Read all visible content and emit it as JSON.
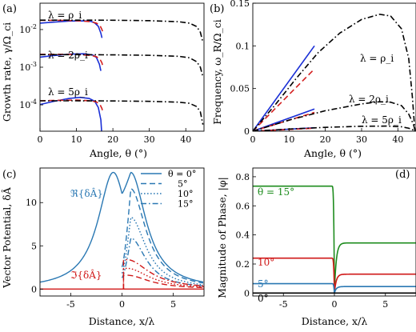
{
  "colors": {
    "blue": "#1a2fd6",
    "red": "#d42020",
    "black": "#000000",
    "steel": "#2a78b3",
    "crimson": "#d01818",
    "green": "#1e8c1e"
  },
  "chart_data": [
    {
      "panel": "(a)",
      "type": "line",
      "xlabel": "Angle, θ (°)",
      "ylabel": "Growth rate, γ/Ω_ci",
      "xlim": [
        0,
        45
      ],
      "ylim_log10": [
        -4.7,
        -1.3
      ],
      "yscale": "log",
      "xticks": [
        "0",
        "10",
        "20",
        "30",
        "40"
      ],
      "yticks": [
        "10^-2",
        "10^-3",
        "10^-4"
      ],
      "annotations": [
        "λ = ρ_i",
        "λ = 2ρ_i",
        "λ = 5ρ_i"
      ],
      "series": [
        {
          "color": "blue",
          "dash": "solid",
          "points": [
            [
              0,
              0.0148
            ],
            [
              4,
              0.0158
            ],
            [
              8,
              0.0168
            ],
            [
              12,
              0.017
            ],
            [
              14,
              0.0165
            ],
            [
              15,
              0.015
            ],
            [
              16,
              0.0122
            ],
            [
              16.7,
              0.008
            ],
            [
              17,
              0.006
            ]
          ]
        },
        {
          "color": "red",
          "dash": "dashed",
          "points": [
            [
              0,
              0.0175
            ],
            [
              5,
              0.0176
            ],
            [
              10,
              0.0172
            ],
            [
              14,
              0.0162
            ],
            [
              15.5,
              0.0148
            ],
            [
              16.5,
              0.0125
            ],
            [
              17,
              0.01
            ],
            [
              17.3,
              0.008
            ]
          ]
        },
        {
          "color": "black",
          "dash": "dashdot",
          "points": [
            [
              0,
              0.0178
            ],
            [
              10,
              0.0178
            ],
            [
              20,
              0.0177
            ],
            [
              30,
              0.0172
            ],
            [
              38,
              0.0162
            ],
            [
              41,
              0.0148
            ],
            [
              43,
              0.012
            ],
            [
              44,
              0.0085
            ],
            [
              44.6,
              0.005
            ]
          ]
        },
        {
          "color": "blue",
          "dash": "solid",
          "points": [
            [
              0,
              0.00185
            ],
            [
              4,
              0.00205
            ],
            [
              8,
              0.00222
            ],
            [
              12,
              0.00228
            ],
            [
              14.5,
              0.0021
            ],
            [
              15.5,
              0.0018
            ],
            [
              16.3,
              0.0012
            ],
            [
              16.7,
              0.0008
            ]
          ]
        },
        {
          "color": "red",
          "dash": "dashed",
          "points": [
            [
              0,
              0.0022
            ],
            [
              6,
              0.0022
            ],
            [
              10,
              0.00218
            ],
            [
              14,
              0.00205
            ],
            [
              15.5,
              0.0019
            ],
            [
              16.5,
              0.0016
            ],
            [
              17,
              0.0013
            ],
            [
              17.3,
              0.001
            ]
          ]
        },
        {
          "color": "black",
          "dash": "dashdot",
          "points": [
            [
              0,
              0.00215
            ],
            [
              10,
              0.00215
            ],
            [
              20,
              0.00213
            ],
            [
              30,
              0.00207
            ],
            [
              38,
              0.00195
            ],
            [
              41,
              0.00178
            ],
            [
              43,
              0.0014
            ],
            [
              44,
              0.001
            ],
            [
              44.6,
              0.0006
            ]
          ]
        },
        {
          "color": "blue",
          "dash": "solid",
          "points": [
            [
              0,
              0.000102
            ],
            [
              4,
              0.000125
            ],
            [
              8,
              0.000148
            ],
            [
              11,
              0.000158
            ],
            [
              13.5,
              0.000148
            ],
            [
              15,
              0.000125
            ],
            [
              16,
              8.5e-05
            ],
            [
              16.7,
              4e-05
            ],
            [
              16.9,
              2e-05
            ]
          ]
        },
        {
          "color": "red",
          "dash": "dashed",
          "points": [
            [
              0,
              0.000128
            ],
            [
              5,
              0.000132
            ],
            [
              10,
              0.000134
            ],
            [
              14,
              0.000128
            ],
            [
              15.5,
              0.00012
            ],
            [
              16.5,
              0.0001
            ],
            [
              17,
              8e-05
            ],
            [
              17.3,
              6e-05
            ]
          ]
        },
        {
          "color": "black",
          "dash": "dashdot",
          "points": [
            [
              0,
              0.000128
            ],
            [
              10,
              0.000128
            ],
            [
              20,
              0.000127
            ],
            [
              30,
              0.000124
            ],
            [
              38,
              0.000118
            ],
            [
              41,
              0.00011
            ],
            [
              43,
              9e-05
            ],
            [
              44,
              6.5e-05
            ],
            [
              44.7,
              3e-05
            ]
          ]
        }
      ]
    },
    {
      "panel": "(b)",
      "type": "line",
      "xlabel": "Angle, θ (°)",
      "ylabel": "Frequency, ω_R/Ω_ci",
      "xlim": [
        0,
        45
      ],
      "ylim": [
        0,
        0.15
      ],
      "xticks": [
        "0",
        "10",
        "20",
        "30",
        "40"
      ],
      "yticks": [
        "0",
        "0.05",
        "0.1",
        "0.15"
      ],
      "annotations": [
        "λ = ρ_i",
        "λ = 2ρ_i",
        "λ = 5ρ_i"
      ],
      "series": [
        {
          "color": "blue",
          "dash": "solid",
          "points": [
            [
              0,
              0
            ],
            [
              17,
              0.1
            ]
          ]
        },
        {
          "color": "red",
          "dash": "dashed",
          "points": [
            [
              0,
              0
            ],
            [
              17,
              0.073
            ]
          ]
        },
        {
          "color": "black",
          "dash": "dashdot",
          "points": [
            [
              0,
              0
            ],
            [
              6,
              0.03
            ],
            [
              12,
              0.062
            ],
            [
              18,
              0.092
            ],
            [
              24,
              0.115
            ],
            [
              30,
              0.131
            ],
            [
              35,
              0.137
            ],
            [
              38,
              0.135
            ],
            [
              41,
              0.12
            ],
            [
              43,
              0.085
            ],
            [
              44,
              0.04
            ],
            [
              44.7,
              0
            ]
          ]
        },
        {
          "color": "blue",
          "dash": "solid",
          "points": [
            [
              0,
              0
            ],
            [
              17,
              0.026
            ]
          ]
        },
        {
          "color": "red",
          "dash": "dashed",
          "points": [
            [
              0,
              0
            ],
            [
              17,
              0.022
            ]
          ]
        },
        {
          "color": "black",
          "dash": "dashdot",
          "points": [
            [
              0,
              0
            ],
            [
              10,
              0.013
            ],
            [
              20,
              0.024
            ],
            [
              30,
              0.032
            ],
            [
              35,
              0.0345
            ],
            [
              38,
              0.034
            ],
            [
              41,
              0.03
            ],
            [
              43,
              0.02
            ],
            [
              44.3,
              0.008
            ],
            [
              44.8,
              0
            ]
          ]
        },
        {
          "color": "blue",
          "dash": "solid",
          "points": [
            [
              0,
              0
            ],
            [
              17,
              0.004
            ]
          ]
        },
        {
          "color": "red",
          "dash": "dashed",
          "points": [
            [
              0,
              0
            ],
            [
              17,
              0.0035
            ]
          ]
        },
        {
          "color": "black",
          "dash": "dashdot",
          "points": [
            [
              0,
              0
            ],
            [
              10,
              0.0025
            ],
            [
              20,
              0.0045
            ],
            [
              30,
              0.0058
            ],
            [
              37,
              0.006
            ],
            [
              41,
              0.0052
            ],
            [
              43,
              0.0035
            ],
            [
              44.5,
              0.001
            ],
            [
              44.8,
              0
            ]
          ]
        }
      ]
    },
    {
      "panel": "(c)",
      "type": "line",
      "xlabel": "Distance, x/λ",
      "ylabel": "Vector Potential, δÂ",
      "xlim": [
        -8,
        8
      ],
      "ylim": [
        -0.8,
        14
      ],
      "xticks": [
        "-5",
        "0",
        "5"
      ],
      "yticks": [
        "0",
        "5",
        "10"
      ],
      "annotations": [
        "ℜ{δÂ}",
        "ℑ{δÂ}"
      ],
      "legend": {
        "position": "top-right",
        "entries": [
          {
            "label": "θ = 0°",
            "dash": "solid"
          },
          {
            "label": "5°",
            "dash": "dashed"
          },
          {
            "label": "10°",
            "dash": "dotted"
          },
          {
            "label": "15°",
            "dash": "dashdot"
          }
        ]
      },
      "real_peak": 13.5,
      "real_peak_position": 0.85,
      "curve_width": 1.8,
      "real_right_amplitudes": [
        13.5,
        11.6,
        8.3,
        5.9
      ],
      "imag_right_amplitudes": [
        0,
        1.6,
        2.4,
        3.4
      ],
      "imag_width": 2.6
    },
    {
      "panel": "(d)",
      "type": "line",
      "xlabel": "Distance, x/λ",
      "ylabel": "Magnitude of Phase, |φ|",
      "xlim": [
        -8,
        8
      ],
      "ylim": [
        -0.02,
        0.86
      ],
      "xticks": [
        "-5",
        "0",
        "5"
      ],
      "yticks": [
        "0",
        "0.2",
        "0.4",
        "0.6",
        "0.8"
      ],
      "annotations": [
        "θ = 15°",
        "10°",
        "5°",
        "0°"
      ],
      "series": [
        {
          "label": "θ = 15°",
          "color": "green",
          "left": 0.735,
          "right": 0.345
        },
        {
          "label": "10°",
          "color": "crimson",
          "left": 0.24,
          "right": 0.13
        },
        {
          "label": "5°",
          "color": "steel",
          "left": 0.065,
          "right": 0.045
        },
        {
          "label": "0°",
          "color": "black",
          "left": 0.0,
          "right": 0.0
        }
      ]
    }
  ]
}
